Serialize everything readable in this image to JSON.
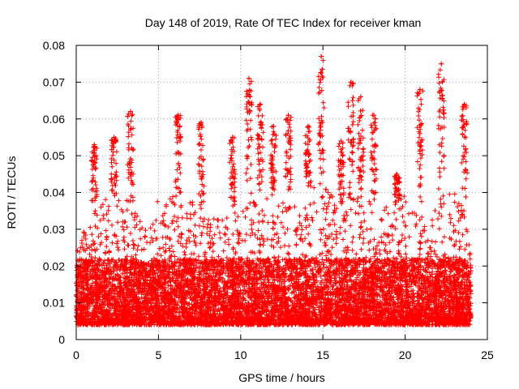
{
  "chart_data": {
    "type": "scatter",
    "title": "Day 148 of 2019, Rate Of TEC Index for receiver kman",
    "xlabel": "GPS time / hours",
    "ylabel": "ROTI / TECUs",
    "xlim": [
      0,
      25
    ],
    "ylim": [
      0,
      0.08
    ],
    "xticks": [
      0,
      5,
      10,
      15,
      20,
      25
    ],
    "xtick_labels": [
      "0",
      "5",
      "10",
      "15",
      "20",
      "25"
    ],
    "yticks": [
      0,
      0.01,
      0.02,
      0.03,
      0.04,
      0.05,
      0.06,
      0.07,
      0.08
    ],
    "ytick_labels": [
      "0",
      "0.01",
      "0.02",
      "0.03",
      "0.04",
      "0.05",
      "0.06",
      "0.07",
      "0.08"
    ],
    "grid": true,
    "marker": "+",
    "series_color": "#ff0000",
    "data_x_range_hours": [
      0,
      24
    ],
    "envelope": {
      "x": [
        0,
        0.5,
        1,
        1.5,
        2,
        2.5,
        3,
        3.5,
        4,
        4.5,
        5,
        5.5,
        6,
        6.5,
        7,
        7.5,
        8,
        8.5,
        9,
        9.5,
        10,
        10.5,
        11,
        11.5,
        12,
        12.5,
        13,
        13.5,
        14,
        14.5,
        15,
        15.5,
        16,
        16.5,
        17,
        17.5,
        18,
        18.5,
        19,
        19.5,
        20,
        20.5,
        21,
        21.5,
        22,
        22.5,
        23,
        23.5,
        24
      ],
      "typical_max": [
        0.025,
        0.03,
        0.035,
        0.036,
        0.04,
        0.038,
        0.04,
        0.035,
        0.033,
        0.035,
        0.04,
        0.038,
        0.04,
        0.037,
        0.038,
        0.035,
        0.033,
        0.033,
        0.035,
        0.036,
        0.038,
        0.04,
        0.04,
        0.038,
        0.04,
        0.042,
        0.04,
        0.037,
        0.04,
        0.042,
        0.045,
        0.04,
        0.036,
        0.035,
        0.038,
        0.037,
        0.038,
        0.035,
        0.04,
        0.037,
        0.04,
        0.035,
        0.035,
        0.032,
        0.038,
        0.04,
        0.04,
        0.036,
        0.025
      ]
    },
    "peaks": [
      {
        "x": 1.1,
        "y": 0.053
      },
      {
        "x": 2.3,
        "y": 0.055
      },
      {
        "x": 3.3,
        "y": 0.062
      },
      {
        "x": 6.2,
        "y": 0.061
      },
      {
        "x": 7.6,
        "y": 0.059
      },
      {
        "x": 9.5,
        "y": 0.055
      },
      {
        "x": 10.5,
        "y": 0.071
      },
      {
        "x": 11.2,
        "y": 0.064
      },
      {
        "x": 12.0,
        "y": 0.058
      },
      {
        "x": 12.9,
        "y": 0.061
      },
      {
        "x": 14.1,
        "y": 0.058
      },
      {
        "x": 14.9,
        "y": 0.077
      },
      {
        "x": 16.1,
        "y": 0.054
      },
      {
        "x": 16.7,
        "y": 0.07
      },
      {
        "x": 17.3,
        "y": 0.066
      },
      {
        "x": 18.1,
        "y": 0.061
      },
      {
        "x": 19.5,
        "y": 0.045
      },
      {
        "x": 20.9,
        "y": 0.068
      },
      {
        "x": 22.2,
        "y": 0.075
      },
      {
        "x": 23.6,
        "y": 0.064
      }
    ]
  }
}
